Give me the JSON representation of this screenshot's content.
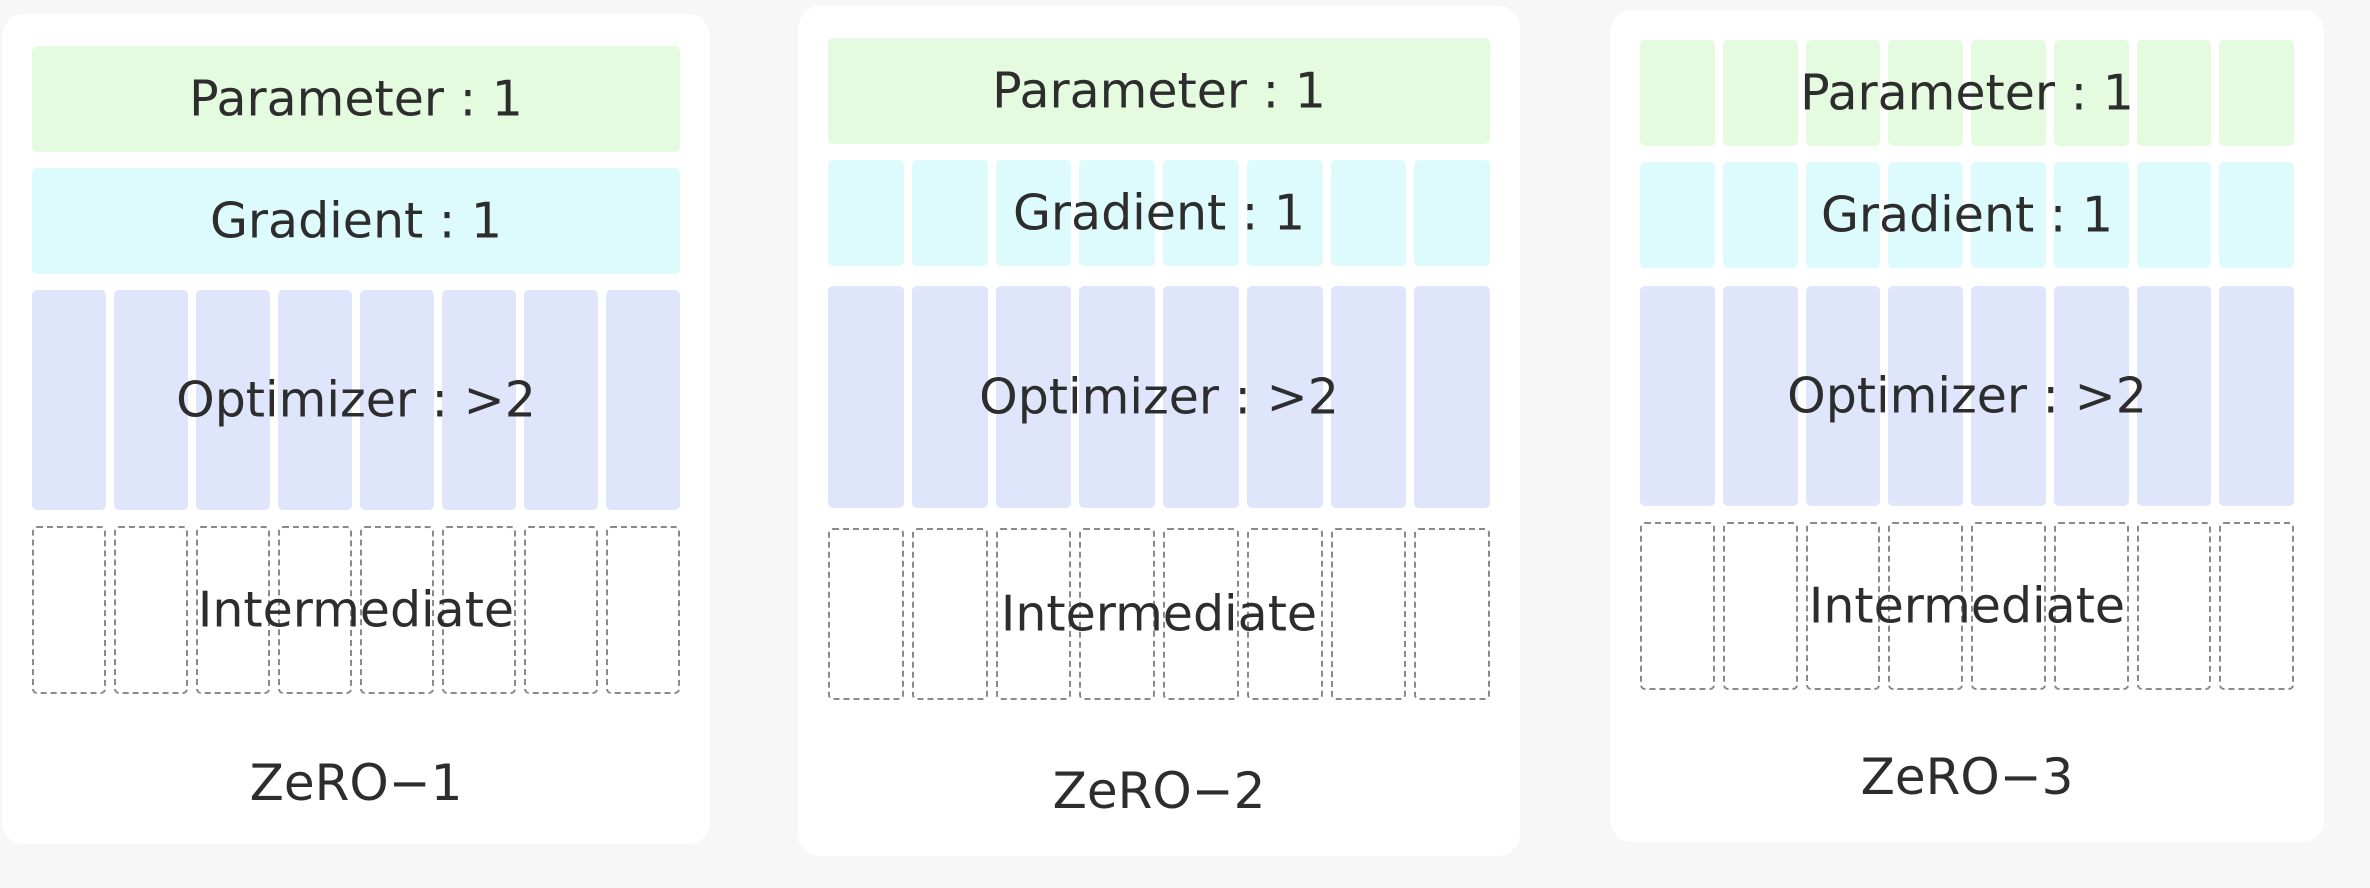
{
  "colors": {
    "background": "#f7f7f8",
    "panel": "#ffffff",
    "parameter": "#e4fbe0",
    "gradient": "#ddfbfd",
    "optimizer": "#dfe6fb",
    "intermediate_border": "#8a8a8a",
    "text": "#2d2d2d"
  },
  "panels": [
    {
      "caption": "ZeRO−1",
      "rows": {
        "parameter": {
          "label": "Parameter : 1",
          "partitioned": false
        },
        "gradient": {
          "label": "Gradient : 1",
          "partitioned": false
        },
        "optimizer": {
          "label": "Optimizer : >2",
          "partitioned": true
        },
        "intermediate": {
          "label": "Intermediate",
          "partitioned": true
        }
      }
    },
    {
      "caption": "ZeRO−2",
      "rows": {
        "parameter": {
          "label": "Parameter : 1",
          "partitioned": false
        },
        "gradient": {
          "label": "Gradient : 1",
          "partitioned": true
        },
        "optimizer": {
          "label": "Optimizer : >2",
          "partitioned": true
        },
        "intermediate": {
          "label": "Intermediate",
          "partitioned": true
        }
      }
    },
    {
      "caption": "ZeRO−3",
      "rows": {
        "parameter": {
          "label": "Parameter : 1",
          "partitioned": true
        },
        "gradient": {
          "label": "Gradient : 1",
          "partitioned": true
        },
        "optimizer": {
          "label": "Optimizer : >2",
          "partitioned": true
        },
        "intermediate": {
          "label": "Intermediate",
          "partitioned": true
        }
      }
    }
  ],
  "partition_count": 8
}
